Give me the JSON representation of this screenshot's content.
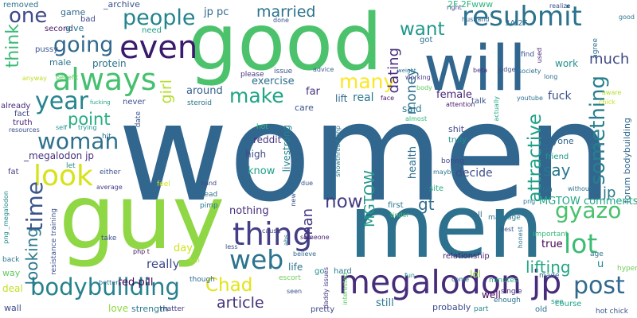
{
  "words": [
    {
      "text": "women",
      "color": "#31668e"
    },
    {
      "text": "good",
      "color": "#4cc26c"
    },
    {
      "text": "will",
      "color": "#31668e"
    },
    {
      "text": "guy",
      "color": "#8fd744"
    },
    {
      "text": "men",
      "color": "#2d718e"
    },
    {
      "text": "megalodon jp",
      "color": "#472c7a"
    },
    {
      "text": "bodybuilding",
      "color": "#26818e"
    },
    {
      "text": "even",
      "color": "#3b1a6e"
    },
    {
      "text": "always",
      "color": "#46c06f"
    },
    {
      "text": "resubmit",
      "color": "#2c728e"
    },
    {
      "text": "thing",
      "color": "#433e85"
    },
    {
      "text": "people",
      "color": "#24858e"
    },
    {
      "text": "look",
      "color": "#d8e219"
    },
    {
      "text": "woman",
      "color": "#2d708e"
    },
    {
      "text": "year",
      "color": "#25848e"
    },
    {
      "text": "web",
      "color": "#2c738e"
    },
    {
      "text": "post",
      "color": "#31688e"
    },
    {
      "text": "lot",
      "color": "#3cbb75"
    },
    {
      "text": "gyazo",
      "color": "#4ac16d"
    },
    {
      "text": "one",
      "color": "#3e4c8a"
    },
    {
      "text": "going",
      "color": "#31688e"
    },
    {
      "text": "time",
      "color": "#3a548c"
    },
    {
      "text": "now",
      "color": "#433e85"
    },
    {
      "text": "many",
      "color": "#fde725"
    },
    {
      "text": "make",
      "color": "#20a486"
    },
    {
      "text": "Chad",
      "color": "#e2e418"
    },
    {
      "text": "article",
      "color": "#46327e"
    },
    {
      "text": "lifting",
      "color": "#22a785"
    },
    {
      "text": "something",
      "color": "#277f8e"
    },
    {
      "text": "married",
      "color": "#2c728e"
    },
    {
      "text": "want",
      "color": "#1f988b"
    },
    {
      "text": "much",
      "color": "#3e4989"
    },
    {
      "text": "say",
      "color": "#2a778e"
    },
    {
      "text": "attractive",
      "color": "#1fa188"
    },
    {
      "text": "think",
      "color": "#3aba76"
    },
    {
      "text": "point",
      "color": "#27ad81"
    },
    {
      "text": "looking",
      "color": "#2a788e"
    },
    {
      "text": "girl",
      "color": "#b5de2b"
    },
    {
      "text": "dating",
      "color": "#472d7b"
    },
    {
      "text": "money",
      "color": "#2d718e"
    },
    {
      "text": "man",
      "color": "#453882"
    },
    {
      "text": "MGTOW",
      "color": "#1f998a"
    },
    {
      "text": "gt",
      "color": "#2e6e8e"
    },
    {
      "text": "jp",
      "color": "#2a788e"
    },
    {
      "text": "forum bodybuilding",
      "color": "#30698e"
    },
    {
      "text": "MGTOW comments",
      "color": "#22a785"
    },
    {
      "text": "decide",
      "color": "#3c4f8a"
    },
    {
      "text": "really",
      "color": "#3e4a89"
    },
    {
      "text": "red pill",
      "color": "#440154"
    },
    {
      "text": "nothing",
      "color": "#472f7d"
    },
    {
      "text": "know",
      "color": "#1fa088"
    },
    {
      "text": "jp pc",
      "color": "#31688e"
    },
    {
      "text": "health",
      "color": "#2e6f8e"
    },
    {
      "text": "exercise",
      "color": "#2e6f8e"
    },
    {
      "text": "lift",
      "color": "#31678e"
    },
    {
      "text": "real",
      "color": "#2a788e"
    },
    {
      "text": "far",
      "color": "#46337f"
    },
    {
      "text": "female",
      "color": "#482475"
    },
    {
      "text": "fuck",
      "color": "#3b528b"
    },
    {
      "text": "work",
      "color": "#21918c"
    },
    {
      "text": "true",
      "color": "#440154"
    },
    {
      "text": "u",
      "color": "#24878e"
    },
    {
      "text": "day",
      "color": "#d2e21b"
    },
    {
      "text": "well",
      "color": "#46075a"
    },
    {
      "text": "still",
      "color": "#2a768e"
    },
    {
      "text": "lol",
      "color": "#8bd646"
    },
    {
      "text": "protein",
      "color": "#2c738e"
    },
    {
      "text": "reddit",
      "color": "#453781"
    },
    {
      "text": "high",
      "color": "#3e4a89"
    },
    {
      "text": "around",
      "color": "#355f8d"
    },
    {
      "text": "game",
      "color": "#31688e"
    },
    {
      "text": "second",
      "color": "#481668"
    },
    {
      "text": "give",
      "color": "#2a768e"
    },
    {
      "text": "need",
      "color": "#1fa187"
    },
    {
      "text": "_archive",
      "color": "#3b518b"
    },
    {
      "text": "bad",
      "color": "#3f4889"
    },
    {
      "text": "removed",
      "color": "#2c728e"
    },
    {
      "text": "pussy",
      "color": "#39558c"
    },
    {
      "text": "male",
      "color": "#2c738e"
    },
    {
      "text": "benefit",
      "color": "#5ec962"
    },
    {
      "text": "anyway",
      "color": "#bddf26"
    },
    {
      "text": "please",
      "color": "#46337f"
    },
    {
      "text": "issue",
      "color": "#3c4f8a"
    },
    {
      "text": "advice",
      "color": "#355f8d"
    },
    {
      "text": "said",
      "color": "#2a788e"
    },
    {
      "text": "care",
      "color": "#3b528b"
    },
    {
      "text": "already",
      "color": "#472c7a"
    },
    {
      "text": "fact",
      "color": "#3f4788"
    },
    {
      "text": "truth",
      "color": "#482475"
    },
    {
      "text": "resources",
      "color": "#3b518b"
    },
    {
      "text": "self",
      "color": "#21908d"
    },
    {
      "text": "trying",
      "color": "#1f948c"
    },
    {
      "text": "never",
      "color": "#3b528b"
    },
    {
      "text": "hit",
      "color": "#2c728e"
    },
    {
      "text": "date",
      "color": "#39568c"
    },
    {
      "text": "steroid",
      "color": "#2a788e"
    },
    {
      "text": "fucking",
      "color": "#20a486"
    },
    {
      "text": "_megalodon jp",
      "color": "#46307e"
    },
    {
      "text": "fat",
      "color": "#433d84"
    },
    {
      "text": "let",
      "color": "#23898e"
    },
    {
      "text": "either",
      "color": "#3b528b"
    },
    {
      "text": "average",
      "color": "#433e85"
    },
    {
      "text": "feel",
      "color": "#d0e11c"
    },
    {
      "text": "hand",
      "color": "#3e4a89"
    },
    {
      "text": "read",
      "color": "#2d708e"
    },
    {
      "text": "pimp",
      "color": "#2a768e"
    },
    {
      "text": "png _megalodon",
      "color": "#23888e"
    },
    {
      "text": "resistance training",
      "color": "#3b528b"
    },
    {
      "text": "take",
      "color": "#3b528b"
    },
    {
      "text": "php t",
      "color": "#470d60"
    },
    {
      "text": "win",
      "color": "#aadc32"
    },
    {
      "text": "less",
      "color": "#3e4c8a"
    },
    {
      "text": "life",
      "color": "#2c738e"
    },
    {
      "text": "hot",
      "color": "#35b779"
    },
    {
      "text": "cause",
      "color": "#414487"
    },
    {
      "text": "abs",
      "color": "#2a788e"
    },
    {
      "text": "someone",
      "color": "#481f70"
    },
    {
      "text": "livestrong",
      "color": "#26828e"
    },
    {
      "text": "new",
      "color": "#3b528b"
    },
    {
      "text": "due",
      "color": "#3b528b"
    },
    {
      "text": "showthread php",
      "color": "#2a788e"
    },
    {
      "text": "believe",
      "color": "#31688e"
    },
    {
      "text": "go",
      "color": "#21918c"
    },
    {
      "text": "hard",
      "color": "#2a788e"
    },
    {
      "text": "interested",
      "color": "#5ec962"
    },
    {
      "text": "daddy issues",
      "color": "#443983"
    },
    {
      "text": "escort",
      "color": "#6ece58"
    },
    {
      "text": "seen",
      "color": "#3b528b"
    },
    {
      "text": "pretty",
      "color": "#3e4989"
    },
    {
      "text": "probably",
      "color": "#3e4989"
    },
    {
      "text": "part",
      "color": "#24878e"
    },
    {
      "text": "enough",
      "color": "#2d708e"
    },
    {
      "text": "course",
      "color": "#22a785"
    },
    {
      "text": "old",
      "color": "#2c728e"
    },
    {
      "text": "see",
      "color": "#1f9a8a"
    },
    {
      "text": "hot chick",
      "color": "#3b528b"
    },
    {
      "text": "tell",
      "color": "#31688e"
    },
    {
      "text": "tinder",
      "color": "#4ac16d"
    },
    {
      "text": "first",
      "color": "#2a788e"
    },
    {
      "text": "site",
      "color": "#27ad81"
    },
    {
      "text": "run",
      "color": "#2a788e"
    },
    {
      "text": "friend",
      "color": "#1f988b"
    },
    {
      "text": "anyone",
      "color": "#31668e"
    },
    {
      "text": "youtube",
      "color": "#2c728e"
    },
    {
      "text": "talk",
      "color": "#3b528b"
    },
    {
      "text": "attention",
      "color": "#481a6c"
    },
    {
      "text": "boring",
      "color": "#3e4989"
    },
    {
      "text": "maybe",
      "color": "#2a788e"
    },
    {
      "text": "shit",
      "color": "#3e4989"
    },
    {
      "text": "truly",
      "color": "#20928c"
    },
    {
      "text": "almost",
      "color": "#35b779"
    },
    {
      "text": "face",
      "color": "#481769"
    },
    {
      "text": "body",
      "color": "#5ec962"
    },
    {
      "text": "working",
      "color": "#443983"
    },
    {
      "text": "right",
      "color": "#3f4788"
    },
    {
      "text": "2F 2Fwww",
      "color": "#2fb47c"
    },
    {
      "text": "husband",
      "color": "#31688e"
    },
    {
      "text": "3A 2F",
      "color": "#2d708e"
    },
    {
      "text": "realize",
      "color": "#3b528b"
    },
    {
      "text": "find",
      "color": "#3b528b"
    },
    {
      "text": "good looking",
      "color": "#2a788e"
    },
    {
      "text": "got",
      "color": "#2c738e"
    },
    {
      "text": "beta",
      "color": "#46307e"
    },
    {
      "text": "judge",
      "color": "#3b528b"
    },
    {
      "text": "society",
      "color": "#2d708e"
    },
    {
      "text": "used",
      "color": "#482878"
    },
    {
      "text": "long",
      "color": "#2d708e"
    },
    {
      "text": "agree",
      "color": "#2d708e"
    },
    {
      "text": "aware",
      "color": "#b5de2b"
    },
    {
      "text": "chick",
      "color": "#c8e020"
    },
    {
      "text": "top",
      "color": "#2a788e"
    },
    {
      "text": "without",
      "color": "#2c728e"
    },
    {
      "text": "png",
      "color": "#2c728e"
    },
    {
      "text": "actually",
      "color": "#22a884"
    },
    {
      "text": "important",
      "color": "#35b779"
    },
    {
      "text": "made",
      "color": "#31688e"
    },
    {
      "text": "age",
      "color": "#2c728e"
    },
    {
      "text": "hypergamy",
      "color": "#6ece58"
    },
    {
      "text": "honest",
      "color": "#2a788e"
    },
    {
      "text": "best",
      "color": "#3b528b"
    },
    {
      "text": "marriage",
      "color": "#2a788e"
    },
    {
      "text": "single",
      "color": "#46327e"
    },
    {
      "text": "minutes",
      "color": "#27ad81"
    },
    {
      "text": "come",
      "color": "#2a788e"
    },
    {
      "text": "fun",
      "color": "#21918c"
    },
    {
      "text": "relationship",
      "color": "#481f70"
    },
    {
      "text": "wall",
      "color": "#3e4a89"
    },
    {
      "text": "love",
      "color": "#90d743"
    },
    {
      "text": "strength",
      "color": "#2a788e"
    },
    {
      "text": "matter",
      "color": "#453882"
    },
    {
      "text": "better",
      "color": "#2c728e"
    },
    {
      "text": "though",
      "color": "#31688e"
    },
    {
      "text": "back",
      "color": "#2a788e"
    },
    {
      "text": "way",
      "color": "#5ec962"
    },
    {
      "text": "deal",
      "color": "#c2df23"
    },
    {
      "text": "done",
      "color": "#3b528b"
    },
    {
      "text": "weight",
      "color": "#2c728e"
    }
  ]
}
